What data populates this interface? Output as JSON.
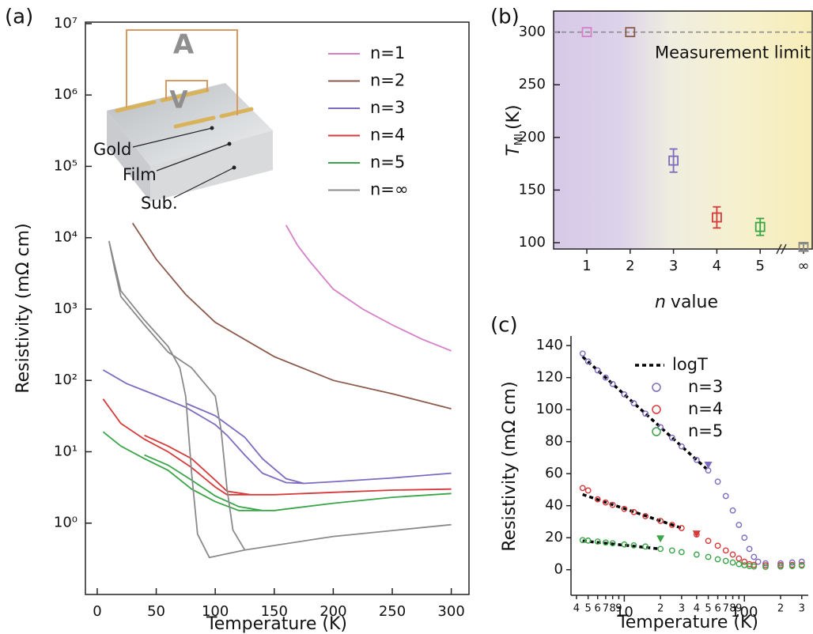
{
  "chart_data": [
    {
      "type": "line",
      "panel_label": "(a)",
      "xlabel": "Temperature (K)",
      "ylabel": "Resistivity (mΩ cm)",
      "xlim": [
        -10,
        315
      ],
      "xticks": [
        0,
        50,
        100,
        150,
        200,
        250,
        300
      ],
      "ylim": [
        0.1,
        10500000
      ],
      "ylog": true,
      "frame": true,
      "yticks": [
        {
          "value": 1,
          "label": "10⁰"
        },
        {
          "value": 10,
          "label": "10¹"
        },
        {
          "value": 100,
          "label": "10²"
        },
        {
          "value": 1000,
          "label": "10³"
        },
        {
          "value": 10000,
          "label": "10⁴"
        },
        {
          "value": 100000,
          "label": "10⁵"
        },
        {
          "value": 1000000,
          "label": "10⁶"
        },
        {
          "value": 10000000,
          "label": "10⁷"
        }
      ],
      "inset_labels": [
        "A",
        "V",
        "Gold",
        "Film",
        "Sub."
      ],
      "series": [
        {
          "name": "n=1",
          "color": "#d67fc8",
          "x": [
            160,
            170,
            180,
            200,
            225,
            250,
            275,
            300
          ],
          "values": [
            15000,
            7700,
            4700,
            1900,
            1000,
            600,
            380,
            260
          ]
        },
        {
          "name": "n=2",
          "color": "#8b5a4b",
          "x": [
            30,
            50,
            75,
            100,
            150,
            200,
            250,
            300
          ],
          "values": [
            16000,
            5000,
            1600,
            650,
            215,
            100,
            65,
            40
          ]
        },
        {
          "name": "n=3",
          "color": "#7d6bc0",
          "x": [
            300,
            250,
            200,
            175,
            160,
            140,
            125,
            110,
            100,
            75,
            50,
            25,
            5,
            null,
            75,
            100,
            125,
            140,
            160,
            175
          ],
          "values": [
            5,
            4.3,
            3.8,
            3.6,
            3.7,
            5,
            9,
            17,
            24,
            42,
            62,
            90,
            140,
            null,
            48,
            32,
            16,
            8,
            4.2,
            3.6
          ]
        },
        {
          "name": "n=4",
          "color": "#d63a3a",
          "x": [
            300,
            250,
            200,
            150,
            110,
            100,
            80,
            60,
            40,
            20,
            5,
            null,
            40,
            60,
            80,
            100,
            110,
            130
          ],
          "values": [
            3.0,
            2.9,
            2.7,
            2.5,
            2.5,
            3.2,
            6,
            10,
            15,
            25,
            55,
            null,
            17,
            12,
            8,
            4,
            2.8,
            2.5
          ]
        },
        {
          "name": "n=5",
          "color": "#3aa548",
          "x": [
            300,
            250,
            200,
            150,
            120,
            100,
            80,
            60,
            40,
            20,
            5,
            null,
            40,
            60,
            80,
            100,
            120,
            140
          ],
          "values": [
            2.6,
            2.3,
            1.9,
            1.5,
            1.5,
            2,
            3,
            5.5,
            8,
            12,
            19,
            null,
            9,
            6.5,
            4,
            2.4,
            1.7,
            1.5
          ]
        },
        {
          "name": "n=∞",
          "color": "#8a8a8a",
          "x": [
            10,
            15,
            20,
            40,
            60,
            70,
            75,
            80,
            85,
            95,
            125,
            200,
            300,
            null,
            10,
            15,
            20,
            40,
            60,
            80,
            100,
            105,
            110,
            115,
            125
          ],
          "values": [
            9000,
            4000,
            1800,
            700,
            300,
            150,
            60,
            5,
            0.7,
            0.33,
            0.42,
            0.65,
            0.95,
            null,
            9000,
            3500,
            1500,
            600,
            250,
            150,
            60,
            20,
            3,
            0.8,
            0.42
          ]
        }
      ]
    },
    {
      "type": "errorbar",
      "panel_label": "(b)",
      "xlabel": {
        "symbol": "n",
        "text": "value"
      },
      "ylabel": {
        "symbol": "T",
        "subscript": "MI",
        "unit": "(K)"
      },
      "categories": [
        "1",
        "2",
        "3",
        "4",
        "5",
        "∞"
      ],
      "values": [
        300,
        300,
        178,
        124,
        115,
        96
      ],
      "errors": [
        0,
        0,
        11,
        10,
        8,
        3
      ],
      "colors": [
        "#d67fc8",
        "#8b5a4b",
        "#7d6bc0",
        "#d63a3a",
        "#3aa548",
        "#8a8a8a"
      ],
      "ylim": [
        94,
        320
      ],
      "yticks": [
        100,
        150,
        200,
        250,
        300
      ],
      "frame": true,
      "limit": 300,
      "limit_label": "Measurement limit"
    },
    {
      "type": "scatter",
      "panel_label": "(c)",
      "xlabel": "Temperature (K)",
      "ylabel": "Resistivity (mΩ cm)",
      "xlim": [
        3.6,
        340
      ],
      "xlog": true,
      "xticks": [
        4,
        5,
        6,
        7,
        8,
        9,
        10,
        {
          "value": 20,
          "label": "2"
        },
        {
          "value": 30,
          "label": "3"
        },
        {
          "value": 40,
          "label": "4"
        },
        {
          "value": 50,
          "label": "5"
        },
        {
          "value": 60,
          "label": "6"
        },
        {
          "value": 70,
          "label": "7"
        },
        {
          "value": 80,
          "label": "8"
        },
        {
          "value": 90,
          "label": "9"
        },
        100,
        {
          "value": 200,
          "label": "2"
        },
        {
          "value": 300,
          "label": "3"
        }
      ],
      "ylim": [
        -12,
        146
      ],
      "yticks": [
        0,
        20,
        40,
        60,
        80,
        100,
        120,
        140
      ],
      "series": [
        {
          "name": "logT",
          "color": "#000000",
          "line_style": "dashed",
          "x": [
            4.5,
            50,
            null,
            4.5,
            30,
            null,
            4.5,
            20
          ],
          "values": [
            133,
            62,
            null,
            47,
            26,
            null,
            18,
            13
          ]
        },
        {
          "name": "n=3",
          "color": "#7d6bc0",
          "marker": "circle",
          "triangle": {
            "x": 50,
            "y": 65
          },
          "x": [
            4.5,
            5,
            6,
            7,
            8,
            10,
            12,
            15,
            20,
            25,
            30,
            40,
            50,
            60,
            70,
            80,
            90,
            100,
            110,
            120,
            130,
            150,
            200,
            250,
            300
          ],
          "values": [
            135,
            130,
            124.5,
            120,
            116,
            109.5,
            104,
            97.5,
            89,
            82.4,
            77,
            68.6,
            62,
            55,
            46,
            37,
            28,
            20,
            13,
            8,
            5,
            4,
            4,
            4.5,
            5
          ]
        },
        {
          "name": "n=4",
          "color": "#d63a3a",
          "marker": "circle",
          "triangle": {
            "x": 40,
            "y": 22
          },
          "x": [
            4.5,
            5,
            6,
            7,
            8,
            10,
            12,
            15,
            20,
            25,
            30,
            40,
            50,
            60,
            70,
            80,
            90,
            100,
            110,
            120,
            150,
            200,
            250,
            300
          ],
          "values": [
            51,
            49.5,
            44,
            42,
            40.5,
            38,
            36,
            33.5,
            30.5,
            28,
            26,
            22,
            18,
            15,
            12,
            9.5,
            7,
            5,
            3.5,
            3,
            2.8,
            2.9,
            3,
            3
          ]
        },
        {
          "name": "n=5",
          "color": "#3aa548",
          "marker": "circle",
          "triangle": {
            "x": 20,
            "y": 19
          },
          "x": [
            4.5,
            5,
            6,
            7,
            8,
            10,
            12,
            15,
            20,
            25,
            30,
            40,
            50,
            60,
            70,
            80,
            90,
            100,
            110,
            120,
            150,
            200,
            250,
            300
          ],
          "values": [
            18.5,
            18.2,
            17.6,
            17,
            16.5,
            15.8,
            15.2,
            14.5,
            13,
            12,
            11,
            9.5,
            8,
            6.5,
            5.5,
            4.5,
            3.5,
            2.8,
            2.3,
            2,
            1.8,
            2,
            2.3,
            2.5
          ]
        }
      ]
    }
  ]
}
